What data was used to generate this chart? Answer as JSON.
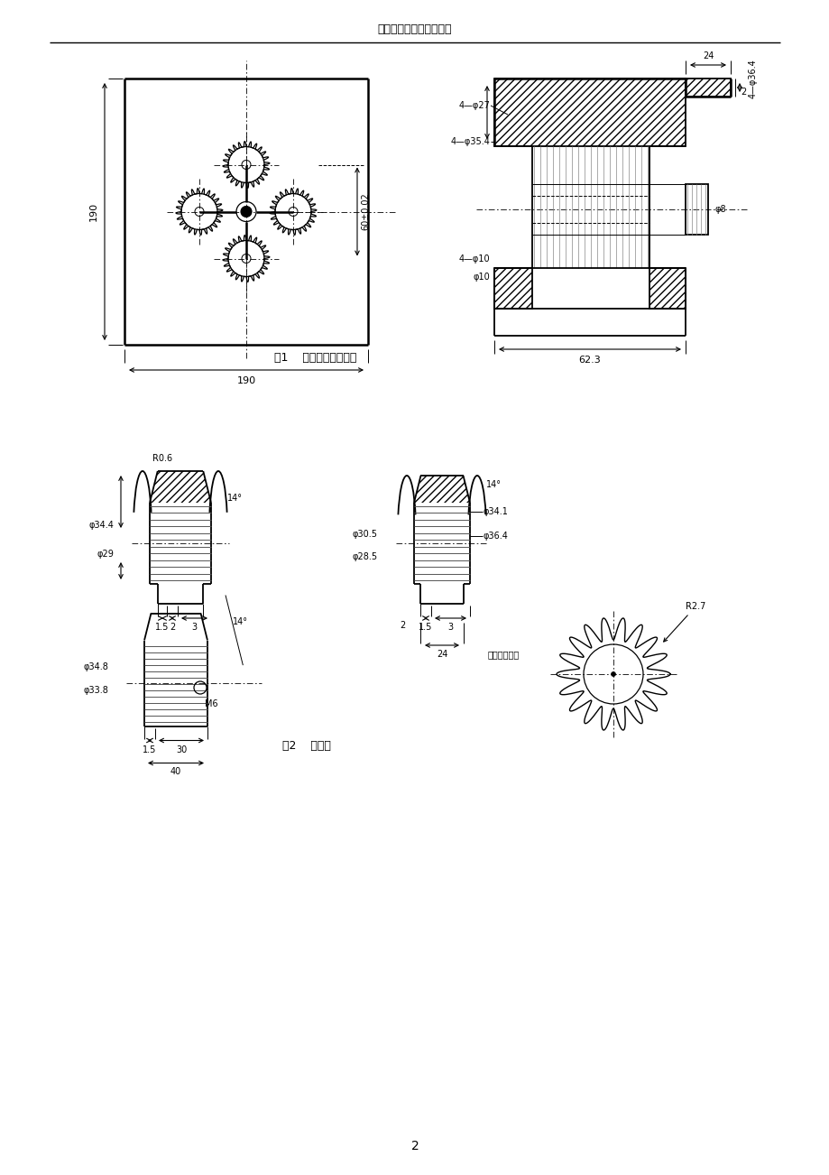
{
  "page_title": "模具制造工艺实验指导书",
  "page_number": "2",
  "fig1_caption": "图1    瓶盖塑料模工件图",
  "fig2_caption": "图2    电极图",
  "background_color": "#ffffff",
  "line_color": "#000000"
}
